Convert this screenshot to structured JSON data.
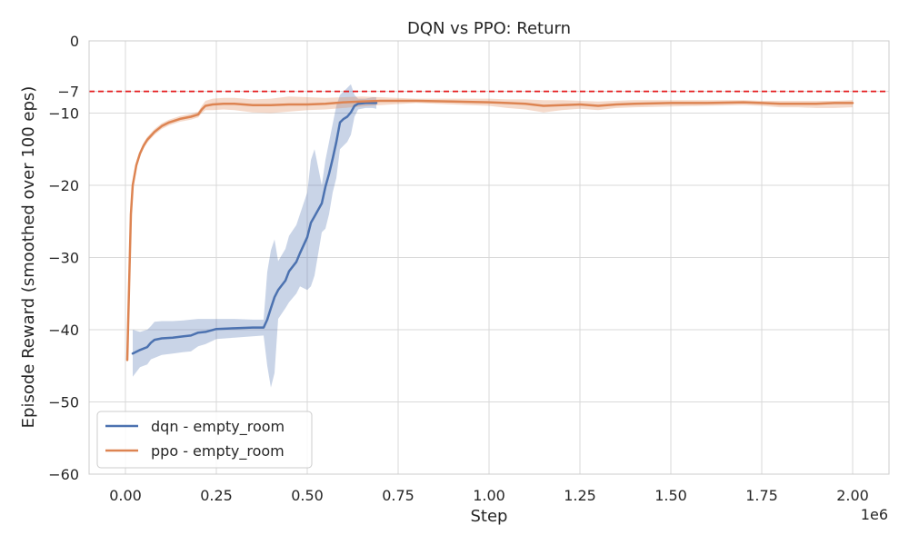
{
  "chart_data": {
    "type": "line",
    "title": "DQN vs PPO: Return",
    "xlabel": "Step",
    "ylabel": "Episode Reward (smoothed over 100 eps)",
    "x_multiplier_label": "1e6",
    "xlim": [
      -0.1,
      2.1
    ],
    "ylim": [
      -60,
      0
    ],
    "xticks": [
      0.0,
      0.25,
      0.5,
      0.75,
      1.0,
      1.25,
      1.5,
      1.75,
      2.0
    ],
    "xtick_labels": [
      "0.00",
      "0.25",
      "0.50",
      "0.75",
      "1.00",
      "1.25",
      "1.50",
      "1.75",
      "2.00"
    ],
    "yticks": [
      0,
      -7,
      -10,
      -20,
      -30,
      -40,
      -50,
      -60
    ],
    "ytick_labels": [
      "0",
      "−7",
      "−10",
      "−20",
      "−30",
      "−40",
      "−50",
      "−60"
    ],
    "grid": true,
    "legend_position": "bottom-left",
    "reference_line": {
      "y": -7,
      "style": "dashed",
      "color": "#e41a1c"
    },
    "series": [
      {
        "name": "dqn - empty_room",
        "color": "#4c72b0",
        "x": [
          0.02,
          0.04,
          0.06,
          0.07,
          0.08,
          0.1,
          0.13,
          0.16,
          0.18,
          0.2,
          0.22,
          0.25,
          0.3,
          0.35,
          0.38,
          0.39,
          0.4,
          0.41,
          0.42,
          0.44,
          0.45,
          0.47,
          0.48,
          0.5,
          0.51,
          0.52,
          0.54,
          0.55,
          0.56,
          0.57,
          0.58,
          0.59,
          0.6,
          0.61,
          0.62,
          0.63,
          0.64,
          0.66,
          0.68,
          0.69
        ],
        "y": [
          -43.3,
          -42.8,
          -42.4,
          -41.8,
          -41.4,
          -41.2,
          -41.1,
          -40.9,
          -40.8,
          -40.4,
          -40.3,
          -39.9,
          -39.8,
          -39.7,
          -39.7,
          -38.6,
          -37.0,
          -35.5,
          -34.5,
          -33.2,
          -31.9,
          -30.6,
          -29.4,
          -27.2,
          -25.2,
          -24.3,
          -22.5,
          -20.2,
          -18.4,
          -16.3,
          -14.0,
          -11.3,
          -10.8,
          -10.5,
          -9.9,
          -9.0,
          -8.7,
          -8.6,
          -8.6,
          -8.6
        ],
        "band_upper": [
          -40.0,
          -40.3,
          -40.0,
          -39.5,
          -38.9,
          -38.8,
          -38.8,
          -38.7,
          -38.6,
          -38.5,
          -38.5,
          -38.5,
          -38.5,
          -38.6,
          -38.6,
          -32.0,
          -29.0,
          -27.5,
          -30.5,
          -28.8,
          -27.0,
          -25.5,
          -24.0,
          -21.0,
          -16.5,
          -15.0,
          -20.0,
          -16.5,
          -14.0,
          -11.5,
          -9.0,
          -7.5,
          -7.0,
          -6.5,
          -6.0,
          -7.5,
          -8.0,
          -8.0,
          -7.8,
          -7.8
        ],
        "band_lower": [
          -46.5,
          -45.2,
          -44.8,
          -44.1,
          -43.9,
          -43.5,
          -43.3,
          -43.1,
          -43.0,
          -42.3,
          -42.0,
          -41.3,
          -41.1,
          -40.9,
          -40.8,
          -45.0,
          -48.0,
          -46.0,
          -38.5,
          -37.0,
          -36.2,
          -35.0,
          -34.0,
          -34.5,
          -34.0,
          -32.5,
          -26.5,
          -26.0,
          -24.0,
          -21.0,
          -19.0,
          -15.0,
          -14.5,
          -14.0,
          -13.0,
          -10.5,
          -9.5,
          -9.3,
          -9.3,
          -9.4
        ]
      },
      {
        "name": "ppo - empty_room",
        "color": "#dd8452",
        "x": [
          0.005,
          0.01,
          0.015,
          0.02,
          0.03,
          0.04,
          0.05,
          0.06,
          0.08,
          0.1,
          0.12,
          0.15,
          0.18,
          0.2,
          0.21,
          0.22,
          0.24,
          0.27,
          0.3,
          0.35,
          0.4,
          0.45,
          0.5,
          0.55,
          0.6,
          0.65,
          0.7,
          0.8,
          0.9,
          1.0,
          1.05,
          1.1,
          1.15,
          1.2,
          1.25,
          1.3,
          1.35,
          1.4,
          1.5,
          1.6,
          1.7,
          1.75,
          1.8,
          1.85,
          1.9,
          1.95,
          2.0
        ],
        "y": [
          -44.2,
          -34.0,
          -24.0,
          -20.0,
          -17.2,
          -15.6,
          -14.5,
          -13.7,
          -12.6,
          -11.8,
          -11.3,
          -10.8,
          -10.5,
          -10.2,
          -9.5,
          -9.0,
          -8.8,
          -8.7,
          -8.7,
          -8.9,
          -8.9,
          -8.8,
          -8.8,
          -8.7,
          -8.5,
          -8.4,
          -8.3,
          -8.3,
          -8.4,
          -8.5,
          -8.6,
          -8.7,
          -9.0,
          -8.9,
          -8.8,
          -9.0,
          -8.8,
          -8.7,
          -8.6,
          -8.6,
          -8.5,
          -8.6,
          -8.7,
          -8.7,
          -8.7,
          -8.6,
          -8.6
        ],
        "band_upper": [
          -44.2,
          -33.5,
          -23.3,
          -19.5,
          -16.7,
          -15.2,
          -14.1,
          -13.3,
          -12.2,
          -11.4,
          -10.9,
          -10.4,
          -10.1,
          -9.8,
          -9.0,
          -8.3,
          -8.0,
          -7.9,
          -7.9,
          -8.1,
          -8.0,
          -7.7,
          -7.8,
          -7.9,
          -7.8,
          -7.7,
          -7.8,
          -8.0,
          -8.0,
          -8.0,
          -8.1,
          -8.1,
          -8.2,
          -8.2,
          -8.3,
          -8.4,
          -8.3,
          -8.2,
          -8.2,
          -8.2,
          -8.2,
          -8.3,
          -8.3,
          -8.3,
          -8.3,
          -8.3,
          -8.2
        ],
        "band_lower": [
          -44.2,
          -34.5,
          -24.7,
          -20.5,
          -17.7,
          -16.0,
          -14.9,
          -14.1,
          -13.0,
          -12.2,
          -11.7,
          -11.2,
          -10.9,
          -10.6,
          -10.0,
          -9.6,
          -9.6,
          -9.5,
          -9.6,
          -9.9,
          -10.0,
          -9.8,
          -9.6,
          -9.5,
          -9.3,
          -9.1,
          -8.9,
          -8.6,
          -8.8,
          -9.0,
          -9.3,
          -9.5,
          -9.9,
          -9.6,
          -9.4,
          -9.6,
          -9.3,
          -9.2,
          -9.1,
          -9.0,
          -8.9,
          -9.0,
          -9.2,
          -9.2,
          -9.3,
          -9.3,
          -9.2
        ]
      }
    ]
  }
}
